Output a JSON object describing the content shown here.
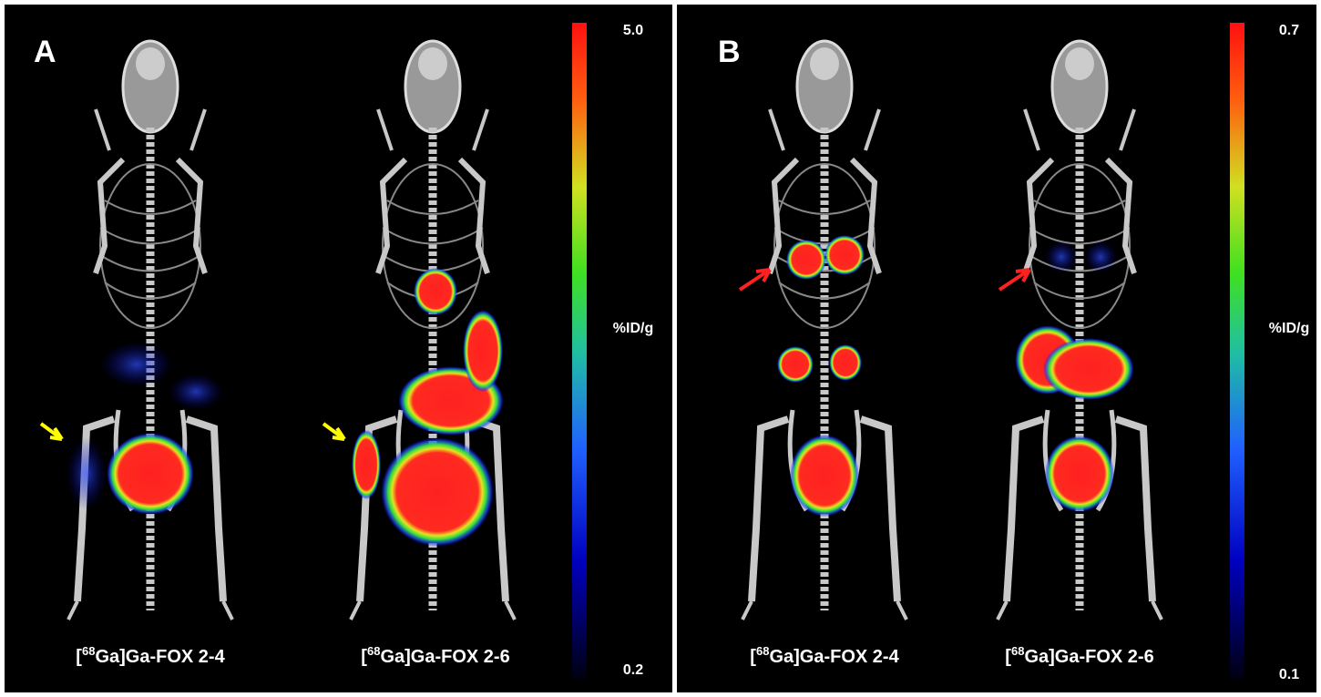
{
  "panels": [
    {
      "letter": "A",
      "images": [
        {
          "label": {
            "open": "[",
            "isotope": "68",
            "rest": "Ga]Ga-FOX 2-4"
          }
        },
        {
          "label": {
            "open": "[",
            "isotope": "68",
            "rest": "Ga]Ga-FOX 2-6"
          }
        }
      ],
      "colorbar": {
        "max": "5.0",
        "unit": "%ID/g",
        "min": "0.2"
      }
    },
    {
      "letter": "B",
      "images": [
        {
          "label": {
            "open": "[",
            "isotope": "68",
            "rest": "Ga]Ga-FOX 2-4"
          }
        },
        {
          "label": {
            "open": "[",
            "isotope": "68",
            "rest": "Ga]Ga-FOX 2-6"
          }
        }
      ],
      "colorbar": {
        "max": "0.7",
        "unit": "%ID/g",
        "min": "0.1"
      }
    }
  ]
}
